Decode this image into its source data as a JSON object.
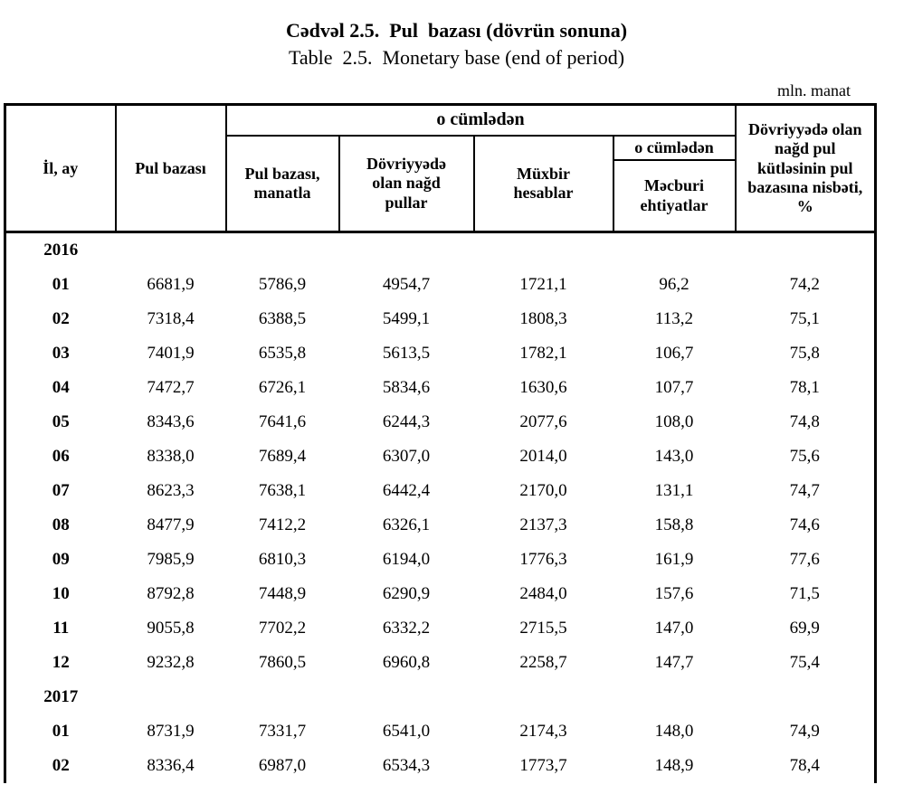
{
  "page": {
    "title_az": "Cədvəl 2.5.  Pul  bazası (dövrün sonuna)",
    "title_en": "Table  2.5.  Monetary base (end of period)",
    "unit_note": "mln. manat"
  },
  "table": {
    "headers": {
      "year_month": "İl, ay",
      "monetary_base": "Pul bazası",
      "of_which_group": "o cümlədən",
      "base_in_manat": "Pul  bazası,\nmanatla",
      "cash_in_circulation": "Dövriyyədə\nolan nağd\npullar",
      "correspondent_accounts": "Müxbir\nhesablar",
      "of_which_sub": "o cümlədən",
      "required_reserves": "Məcburi\nehtiyatlar",
      "cash_to_base_ratio": "Dövriyyədə olan\nnağd pul\nkütləsinin pul\nbazasına nisbəti,\n%"
    },
    "rows": [
      {
        "type": "year",
        "label": "2016"
      },
      {
        "type": "data",
        "label": "01",
        "values": [
          "6681,9",
          "5786,9",
          "4954,7",
          "1721,1",
          "96,2",
          "74,2"
        ]
      },
      {
        "type": "data",
        "label": "02",
        "values": [
          "7318,4",
          "6388,5",
          "5499,1",
          "1808,3",
          "113,2",
          "75,1"
        ]
      },
      {
        "type": "data",
        "label": "03",
        "values": [
          "7401,9",
          "6535,8",
          "5613,5",
          "1782,1",
          "106,7",
          "75,8"
        ]
      },
      {
        "type": "data",
        "label": "04",
        "values": [
          "7472,7",
          "6726,1",
          "5834,6",
          "1630,6",
          "107,7",
          "78,1"
        ]
      },
      {
        "type": "data",
        "label": "05",
        "values": [
          "8343,6",
          "7641,6",
          "6244,3",
          "2077,6",
          "108,0",
          "74,8"
        ]
      },
      {
        "type": "data",
        "label": "06",
        "values": [
          "8338,0",
          "7689,4",
          "6307,0",
          "2014,0",
          "143,0",
          "75,6"
        ]
      },
      {
        "type": "data",
        "label": "07",
        "values": [
          "8623,3",
          "7638,1",
          "6442,4",
          "2170,0",
          "131,1",
          "74,7"
        ]
      },
      {
        "type": "data",
        "label": "08",
        "values": [
          "8477,9",
          "7412,2",
          "6326,1",
          "2137,3",
          "158,8",
          "74,6"
        ]
      },
      {
        "type": "data",
        "label": "09",
        "values": [
          "7985,9",
          "6810,3",
          "6194,0",
          "1776,3",
          "161,9",
          "77,6"
        ]
      },
      {
        "type": "data",
        "label": "10",
        "values": [
          "8792,8",
          "7448,9",
          "6290,9",
          "2484,0",
          "157,6",
          "71,5"
        ]
      },
      {
        "type": "data",
        "label": "11",
        "values": [
          "9055,8",
          "7702,2",
          "6332,2",
          "2715,5",
          "147,0",
          "69,9"
        ]
      },
      {
        "type": "data",
        "label": "12",
        "values": [
          "9232,8",
          "7860,5",
          "6960,8",
          "2258,7",
          "147,7",
          "75,4"
        ]
      },
      {
        "type": "year",
        "label": "2017"
      },
      {
        "type": "data",
        "label": "01",
        "values": [
          "8731,9",
          "7331,7",
          "6541,0",
          "2174,3",
          "148,0",
          "74,9"
        ]
      },
      {
        "type": "data",
        "label": "02",
        "values": [
          "8336,4",
          "6987,0",
          "6534,3",
          "1773,7",
          "148,9",
          "78,4"
        ]
      }
    ]
  }
}
